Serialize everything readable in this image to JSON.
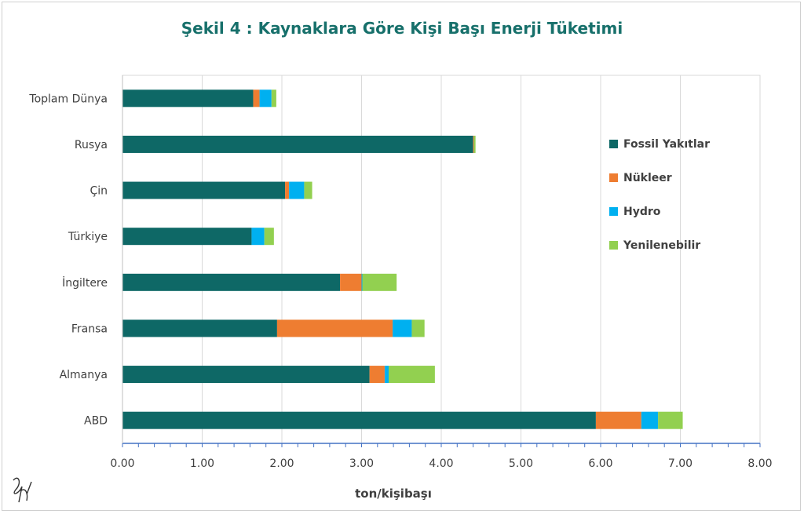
{
  "chart_data": {
    "type": "bar",
    "orientation": "horizontal",
    "stacked": true,
    "title": "Şekil 4 : Kaynaklara Göre Kişi Başı Enerji Tüketimi",
    "xlabel": "ton/kişibaşı",
    "ylabel": "",
    "xlim": [
      0,
      8
    ],
    "xticks": [
      "0.00",
      "1.00",
      "2.00",
      "3.00",
      "4.00",
      "5.00",
      "6.00",
      "7.00",
      "8.00"
    ],
    "grid": true,
    "legend_position": "right",
    "categories": [
      "Toplam Dünya",
      "Rusya",
      "Çin",
      "Türkiye",
      "İngiltere",
      "Fransa",
      "Almanya",
      "ABD"
    ],
    "series": [
      {
        "name": "Fossil Yakıtlar",
        "color": "#0e6866",
        "values": [
          1.64,
          4.4,
          2.04,
          1.62,
          2.73,
          1.94,
          3.1,
          5.94
        ]
      },
      {
        "name": "Nükleer",
        "color": "#ee7d31",
        "values": [
          0.08,
          0.01,
          0.05,
          0.0,
          0.27,
          1.45,
          0.19,
          0.57
        ]
      },
      {
        "name": "Hydro",
        "color": "#00b0f0",
        "values": [
          0.15,
          0.0,
          0.19,
          0.16,
          0.01,
          0.24,
          0.05,
          0.21
        ]
      },
      {
        "name": "Yenilenebilir",
        "color": "#92d050",
        "values": [
          0.06,
          0.02,
          0.1,
          0.12,
          0.43,
          0.16,
          0.58,
          0.31
        ]
      }
    ]
  }
}
